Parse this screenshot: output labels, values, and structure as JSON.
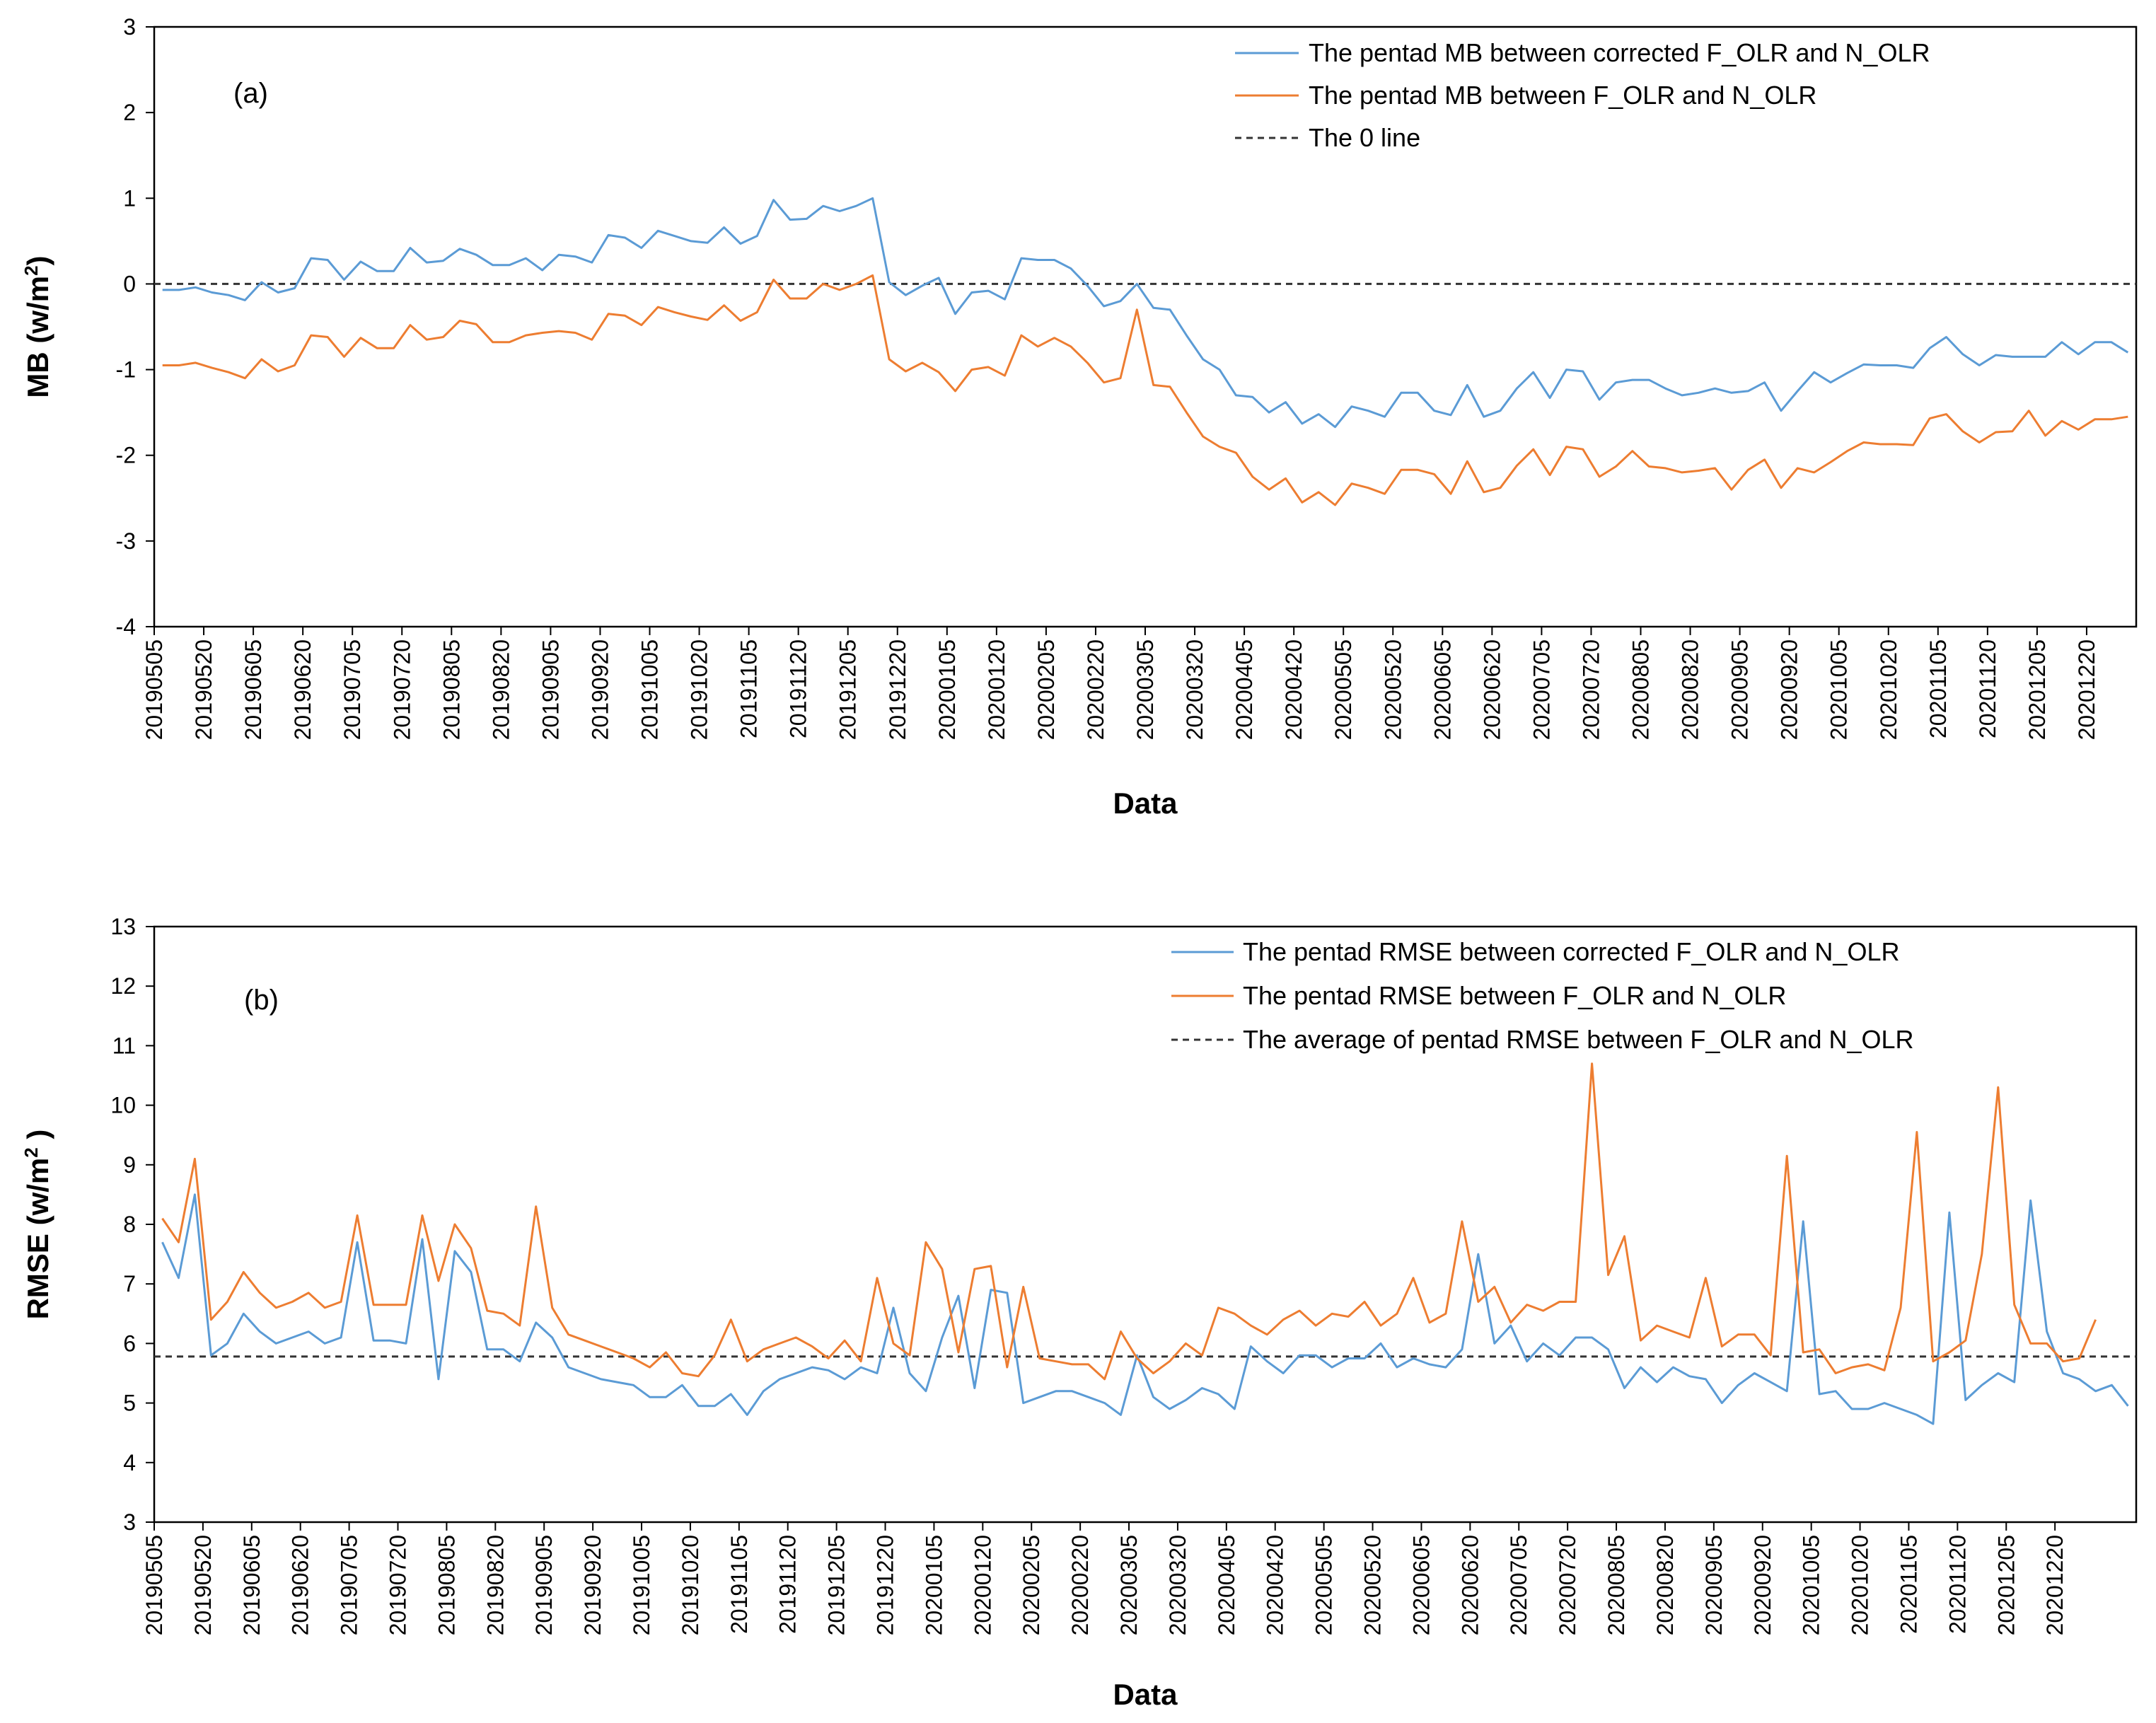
{
  "chart_data": [
    {
      "type": "line",
      "panel_label": "(a)",
      "title": "",
      "xlabel": "Data",
      "ylabel": "MB (w/m",
      "ylabel_sup": "2",
      "ylabel_close": ")",
      "ylim": [
        -4,
        3
      ],
      "yticks": [
        "-4",
        "-3",
        "-2",
        "-1",
        "0",
        "1",
        "2",
        "3"
      ],
      "grid": false,
      "legend_position": "top-right",
      "x_tick_labels": [
        "20190505",
        "20190520",
        "20190605",
        "20190620",
        "20190705",
        "20190720",
        "20190805",
        "20190820",
        "20190905",
        "20190920",
        "20191005",
        "20191020",
        "20191105",
        "20191120",
        "20191205",
        "20191220",
        "20200105",
        "20200120",
        "20200205",
        "20200220",
        "20200305",
        "20200320",
        "20200405",
        "20200420",
        "20200505",
        "20200520",
        "20200605",
        "20200620",
        "20200705",
        "20200720",
        "20200805",
        "20200820",
        "20200905",
        "20200920",
        "20201005",
        "20201020",
        "20201105",
        "20201120",
        "20201205",
        "20201220"
      ],
      "series": [
        {
          "name": "The pentad MB between corrected F_OLR and N_OLR",
          "color": "#5b9bd5",
          "values": [
            -0.07,
            -0.07,
            -0.04,
            -0.1,
            -0.13,
            -0.19,
            0.02,
            -0.1,
            -0.05,
            0.3,
            0.28,
            0.05,
            0.26,
            0.15,
            0.15,
            0.42,
            0.25,
            0.27,
            0.41,
            0.34,
            0.22,
            0.22,
            0.3,
            0.16,
            0.34,
            0.32,
            0.25,
            0.57,
            0.54,
            0.42,
            0.62,
            0.56,
            0.5,
            0.48,
            0.66,
            0.47,
            0.56,
            0.98,
            0.75,
            0.76,
            0.91,
            0.85,
            0.91,
            1.0,
            0.02,
            -0.13,
            -0.02,
            0.07,
            -0.35,
            -0.1,
            -0.08,
            -0.18,
            0.3,
            0.28,
            0.28,
            0.18,
            -0.02,
            -0.26,
            -0.2,
            0.0,
            -0.28,
            -0.3,
            -0.6,
            -0.88,
            -1.0,
            -1.3,
            -1.32,
            -1.5,
            -1.38,
            -1.63,
            -1.52,
            -1.67,
            -1.43,
            -1.48,
            -1.55,
            -1.27,
            -1.27,
            -1.48,
            -1.53,
            -1.18,
            -1.55,
            -1.48,
            -1.22,
            -1.03,
            -1.33,
            -1.0,
            -1.02,
            -1.35,
            -1.15,
            -1.12,
            -1.12,
            -1.22,
            -1.3,
            -1.27,
            -1.22,
            -1.27,
            -1.25,
            -1.15,
            -1.48,
            -1.25,
            -1.03,
            -1.15,
            -1.04,
            -0.94,
            -0.95,
            -0.95,
            -0.98,
            -0.75,
            -0.62,
            -0.82,
            -0.95,
            -0.83,
            -0.85,
            -0.85,
            -0.85,
            -0.68,
            -0.82,
            -0.68,
            -0.68,
            -0.8
          ]
        },
        {
          "name": "The pentad MB between F_OLR and N_OLR",
          "color": "#ed7d31",
          "values": [
            -0.95,
            -0.95,
            -0.92,
            -0.98,
            -1.03,
            -1.1,
            -0.88,
            -1.02,
            -0.95,
            -0.6,
            -0.62,
            -0.85,
            -0.63,
            -0.75,
            -0.75,
            -0.48,
            -0.65,
            -0.62,
            -0.43,
            -0.47,
            -0.68,
            -0.68,
            -0.6,
            -0.57,
            -0.55,
            -0.57,
            -0.65,
            -0.35,
            -0.37,
            -0.48,
            -0.27,
            -0.33,
            -0.38,
            -0.42,
            -0.25,
            -0.43,
            -0.33,
            0.05,
            -0.17,
            -0.17,
            0.0,
            -0.07,
            0.0,
            0.1,
            -0.88,
            -1.02,
            -0.92,
            -1.03,
            -1.25,
            -1.0,
            -0.97,
            -1.07,
            -0.6,
            -0.73,
            -0.63,
            -0.73,
            -0.92,
            -1.15,
            -1.1,
            -0.3,
            -1.18,
            -1.2,
            -1.5,
            -1.78,
            -1.9,
            -1.97,
            -2.25,
            -2.4,
            -2.27,
            -2.55,
            -2.43,
            -2.58,
            -2.33,
            -2.38,
            -2.45,
            -2.17,
            -2.17,
            -2.22,
            -2.45,
            -2.07,
            -2.43,
            -2.38,
            -2.12,
            -1.93,
            -2.23,
            -1.9,
            -1.93,
            -2.25,
            -2.13,
            -1.95,
            -2.13,
            -2.15,
            -2.2,
            -2.18,
            -2.15,
            -2.4,
            -2.17,
            -2.05,
            -2.38,
            -2.15,
            -2.2,
            -2.08,
            -1.95,
            -1.85,
            -1.87,
            -1.87,
            -1.88,
            -1.57,
            -1.52,
            -1.72,
            -1.85,
            -1.73,
            -1.72,
            -1.48,
            -1.77,
            -1.6,
            -1.7,
            -1.58,
            -1.58,
            -1.55
          ]
        }
      ],
      "reference_line": {
        "name": "The 0 line",
        "value": 0,
        "color": "#333333"
      }
    },
    {
      "type": "line",
      "panel_label": "(b)",
      "title": "",
      "xlabel": "Data",
      "ylabel": "RMSE (w/m",
      "ylabel_sup": "2",
      "ylabel_close": " )",
      "ylim": [
        3,
        13
      ],
      "yticks": [
        "3",
        "4",
        "5",
        "6",
        "7",
        "8",
        "9",
        "10",
        "11",
        "12",
        "13"
      ],
      "grid": false,
      "legend_position": "top-right",
      "x_tick_labels": [
        "20190505",
        "20190520",
        "20190605",
        "20190620",
        "20190705",
        "20190720",
        "20190805",
        "20190820",
        "20190905",
        "20190920",
        "20191005",
        "20191020",
        "20191105",
        "20191120",
        "20191205",
        "20191220",
        "20200105",
        "20200120",
        "20200205",
        "20200220",
        "20200305",
        "20200320",
        "20200405",
        "20200420",
        "20200505",
        "20200520",
        "20200605",
        "20200620",
        "20200705",
        "20200720",
        "20200805",
        "20200820",
        "20200905",
        "20200920",
        "20201005",
        "20201020",
        "20201105",
        "20201120",
        "20201205",
        "20201220"
      ],
      "series": [
        {
          "name": "The pentad RMSE between corrected F_OLR and N_OLR",
          "color": "#5b9bd5",
          "values": [
            7.7,
            7.1,
            8.5,
            5.8,
            6.0,
            6.5,
            6.2,
            6.0,
            6.1,
            6.2,
            6.0,
            6.1,
            7.7,
            6.05,
            6.05,
            6.0,
            7.75,
            5.4,
            7.55,
            7.2,
            5.9,
            5.9,
            5.7,
            6.35,
            6.1,
            5.6,
            5.5,
            5.4,
            5.35,
            5.3,
            5.1,
            5.1,
            5.3,
            4.95,
            4.95,
            5.15,
            4.8,
            5.2,
            5.4,
            5.5,
            5.6,
            5.55,
            5.4,
            5.6,
            5.5,
            6.6,
            5.5,
            5.2,
            6.1,
            6.8,
            5.25,
            6.9,
            6.85,
            5.0,
            5.1,
            5.2,
            5.2,
            5.1,
            5.0,
            4.8,
            5.8,
            5.1,
            4.9,
            5.05,
            5.25,
            5.15,
            4.9,
            5.95,
            5.7,
            5.5,
            5.8,
            5.8,
            5.6,
            5.75,
            5.75,
            6.0,
            5.6,
            5.75,
            5.65,
            5.6,
            5.9,
            7.5,
            6.0,
            6.3,
            5.7,
            6.0,
            5.8,
            6.1,
            6.1,
            5.9,
            5.25,
            5.6,
            5.35,
            5.6,
            5.45,
            5.4,
            5.0,
            5.3,
            5.5,
            5.35,
            5.2,
            8.05,
            5.15,
            5.2,
            4.9,
            4.9,
            5.0,
            4.9,
            4.8,
            4.65,
            8.2,
            5.05,
            5.3,
            5.5,
            5.35,
            8.4,
            6.2,
            5.5,
            5.4,
            5.2,
            5.3,
            4.95
          ]
        },
        {
          "name": "The pentad RMSE between F_OLR and N_OLR",
          "color": "#ed7d31",
          "values": [
            8.1,
            7.7,
            9.1,
            6.4,
            6.7,
            7.2,
            6.85,
            6.6,
            6.7,
            6.85,
            6.6,
            6.7,
            8.15,
            6.65,
            6.65,
            6.65,
            8.15,
            7.05,
            8.0,
            7.6,
            6.55,
            6.5,
            6.3,
            8.3,
            6.6,
            6.15,
            6.05,
            5.95,
            5.85,
            5.75,
            5.6,
            5.85,
            5.5,
            5.45,
            5.8,
            6.4,
            5.7,
            5.9,
            6.0,
            6.1,
            5.95,
            5.75,
            6.05,
            5.7,
            7.1,
            6.0,
            5.8,
            7.7,
            7.25,
            5.85,
            7.25,
            7.3,
            5.6,
            6.95,
            5.75,
            5.7,
            5.65,
            5.65,
            5.4,
            6.2,
            5.75,
            5.5,
            5.7,
            6.0,
            5.8,
            6.6,
            6.5,
            6.3,
            6.15,
            6.4,
            6.55,
            6.3,
            6.5,
            6.45,
            6.7,
            6.3,
            6.5,
            7.1,
            6.35,
            6.5,
            8.05,
            6.7,
            6.95,
            6.35,
            6.65,
            6.55,
            6.7,
            6.7,
            10.7,
            7.15,
            7.8,
            6.05,
            6.3,
            6.2,
            6.1,
            7.1,
            5.95,
            6.15,
            6.15,
            5.8,
            9.15,
            5.85,
            5.9,
            5.5,
            5.6,
            5.65,
            5.55,
            6.6,
            9.55,
            5.7,
            5.85,
            6.05,
            7.5,
            10.3,
            6.65,
            6.0,
            6.0,
            5.7,
            5.75,
            6.4
          ]
        }
      ],
      "reference_line": {
        "name": "The average of pentad RMSE between F_OLR and N_OLR",
        "value": 5.78,
        "color": "#333333"
      }
    }
  ]
}
